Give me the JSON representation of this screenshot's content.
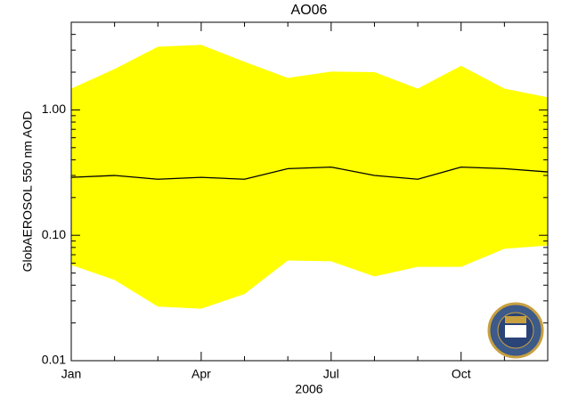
{
  "chart_data": {
    "type": "line-band",
    "title": "AO06",
    "x_label": "2006",
    "y_label": "GlobAEROSOL 550 nm AOD",
    "categories": [
      "Jan",
      null,
      null,
      "Apr",
      null,
      null,
      "Jul",
      null,
      null,
      "Oct",
      null,
      null
    ],
    "values": [
      0.29,
      0.3,
      0.28,
      0.29,
      0.28,
      0.34,
      0.35,
      0.3,
      0.28,
      0.35,
      0.34,
      0.32
    ],
    "upper": [
      1.48,
      2.12,
      3.19,
      3.3,
      2.42,
      1.8,
      2.02,
      2.0,
      1.48,
      2.25,
      1.48,
      1.26
    ],
    "lower": [
      0.058,
      0.044,
      0.027,
      0.026,
      0.034,
      0.063,
      0.062,
      0.047,
      0.056,
      0.056,
      0.078,
      0.083
    ],
    "color": "#000000",
    "band_color": "#ffff00",
    "log_y": true,
    "ylim": [
      0.01,
      5
    ],
    "yticks": [
      {
        "value": 0.01,
        "label": "0.01"
      },
      {
        "value": 0.1,
        "label": "0.10"
      },
      {
        "value": 1,
        "label": "1.00"
      }
    ],
    "yminorticks": [
      0.02,
      0.03,
      0.04,
      0.05,
      0.06,
      0.07,
      0.08,
      0.09,
      0.2,
      0.3,
      0.4,
      0.5,
      0.6,
      0.7,
      0.8,
      0.9,
      2,
      3,
      4,
      5
    ]
  }
}
